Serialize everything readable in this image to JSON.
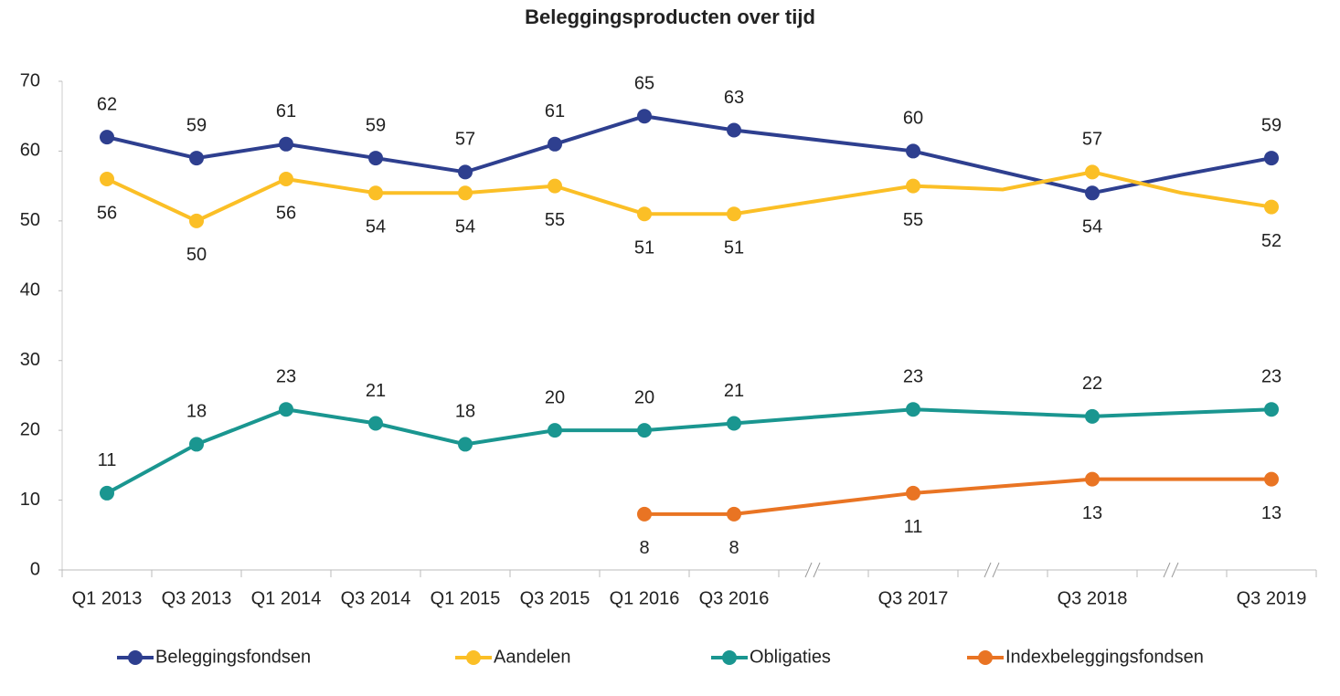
{
  "chart_data": {
    "type": "line",
    "title": "Beleggingsproducten over tijd",
    "categories": [
      "Q1 2013",
      "Q3 2013",
      "Q1 2014",
      "Q3 2014",
      "Q1 2015",
      "Q3 2015",
      "Q1 2016",
      "Q3 2016",
      null,
      "Q3 2017",
      null,
      "Q3 2018",
      null,
      "Q3 2019"
    ],
    "series": [
      {
        "name": "Beleggingsfondsen",
        "color": "#2e3f8f",
        "values": [
          62,
          59,
          61,
          59,
          57,
          61,
          65,
          63,
          61.5,
          60,
          57,
          54,
          56.6,
          59
        ]
      },
      {
        "name": "Aandelen",
        "color": "#fbbf26",
        "values": [
          56,
          50,
          56,
          54,
          54,
          55,
          51,
          51,
          53,
          55,
          54.5,
          57,
          54,
          52
        ]
      },
      {
        "name": "Obligaties",
        "color": "#1a9690",
        "values": [
          11,
          18,
          23,
          21,
          18,
          20,
          20,
          21,
          22,
          23,
          22.5,
          22,
          22.5,
          23
        ]
      },
      {
        "name": "Indexbeleggingsfondsen",
        "color": "#e97423",
        "values": [
          null,
          null,
          null,
          null,
          null,
          null,
          8,
          8,
          9.5,
          11,
          12,
          13,
          13,
          13
        ]
      }
    ],
    "ylim": [
      0,
      70
    ],
    "yticks": [
      0,
      10,
      20,
      30,
      40,
      50,
      60,
      70
    ],
    "grid": false,
    "legend": "bottom"
  }
}
